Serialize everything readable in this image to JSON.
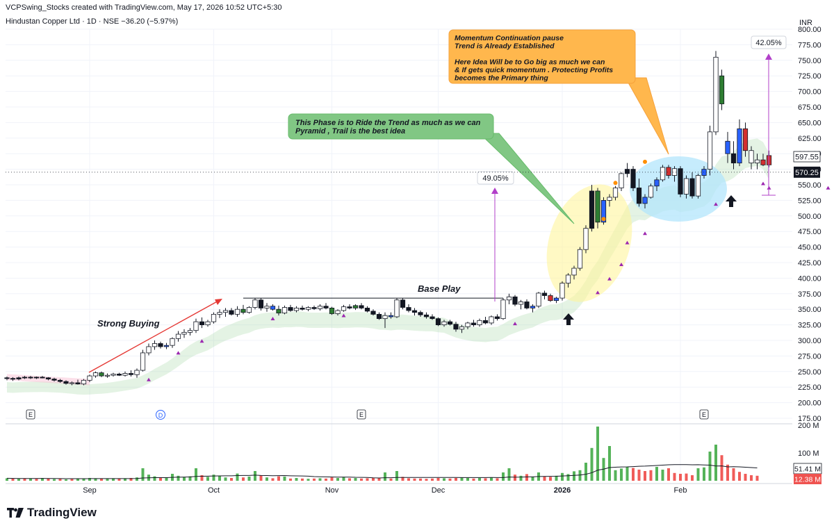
{
  "header": {
    "creator": "VCPSwing_Stocks created with TradingView.com, May 17, 2026 10:52 UTC+5:30",
    "symbol_line": "Hindustan Copper Ltd · 1D · NSE  −36.20 (−5.97%)"
  },
  "brand": {
    "name": "TradingView",
    "logo_icon": "tradingview-logo-icon"
  },
  "colors": {
    "up": "#2e7d32",
    "down": "#d32f2f",
    "hollow": "#ffffff",
    "blue": "#2962ff",
    "vol_up": "#4caf50",
    "vol_down": "#ef5350",
    "violet": "#9c27b0",
    "orange": "#ff8f00",
    "measure": "#b23fc9",
    "arrow_red": "#e53935"
  },
  "chart_data": {
    "type": "candlestick",
    "currency": "INR",
    "price_axis": {
      "min": 175,
      "max": 800,
      "ticks": [
        "800.00",
        "775.00",
        "750.00",
        "725.00",
        "700.00",
        "675.00",
        "650.00",
        "625.00",
        "600.00",
        "575.00",
        "550.00",
        "525.00",
        "500.00",
        "475.00",
        "450.00",
        "425.00",
        "400.00",
        "375.00",
        "350.00",
        "325.00",
        "300.00",
        "275.00",
        "250.00",
        "225.00",
        "200.00",
        "175.00"
      ]
    },
    "last_price_label": "570.25",
    "crosshair_label": "597.55",
    "volume_axis": {
      "max": 200,
      "ticks": [
        "200 M",
        "100 M"
      ]
    },
    "volume_labels": [
      "51.41 M",
      "12.38 M"
    ],
    "x_axis_labels": [
      {
        "label": "Sep",
        "bar": 14
      },
      {
        "label": "Oct",
        "bar": 35
      },
      {
        "label": "Nov",
        "bar": 55
      },
      {
        "label": "Dec",
        "bar": 73
      },
      {
        "label": "2026",
        "bar": 94
      },
      {
        "label": "Feb",
        "bar": 114
      }
    ],
    "event_markers": [
      {
        "label": "E",
        "bar": 4
      },
      {
        "label": "D",
        "bar": 26
      },
      {
        "label": "E",
        "bar": 60
      },
      {
        "label": "E",
        "bar": 118
      }
    ],
    "candles": [
      [
        240,
        242,
        236,
        239,
        "d"
      ],
      [
        239,
        241,
        235,
        238,
        "d"
      ],
      [
        238,
        242,
        236,
        240,
        "d"
      ],
      [
        240,
        243,
        238,
        241,
        "d"
      ],
      [
        241,
        243,
        238,
        240,
        "d"
      ],
      [
        240,
        242,
        238,
        241,
        "d"
      ],
      [
        241,
        243,
        239,
        240,
        "d"
      ],
      [
        240,
        241,
        236,
        238,
        "d"
      ],
      [
        238,
        240,
        234,
        236,
        "d"
      ],
      [
        236,
        238,
        232,
        234,
        "d"
      ],
      [
        234,
        236,
        229,
        231,
        "d"
      ],
      [
        231,
        234,
        228,
        232,
        "u"
      ],
      [
        232,
        237,
        229,
        230,
        "d"
      ],
      [
        230,
        238,
        228,
        236,
        "u"
      ],
      [
        236,
        245,
        233,
        243,
        "u"
      ],
      [
        243,
        250,
        240,
        248,
        "u"
      ],
      [
        248,
        250,
        241,
        243,
        "g"
      ],
      [
        243,
        247,
        240,
        244,
        "u"
      ],
      [
        244,
        248,
        242,
        246,
        "u"
      ],
      [
        246,
        248,
        243,
        244,
        "d"
      ],
      [
        244,
        250,
        242,
        247,
        "u"
      ],
      [
        247,
        252,
        242,
        245,
        "d"
      ],
      [
        245,
        255,
        240,
        252,
        "u"
      ],
      [
        252,
        285,
        250,
        280,
        "u"
      ],
      [
        280,
        295,
        276,
        290,
        "u"
      ],
      [
        290,
        300,
        285,
        295,
        "u"
      ],
      [
        295,
        298,
        287,
        290,
        "d"
      ],
      [
        290,
        296,
        286,
        292,
        "b"
      ],
      [
        292,
        305,
        288,
        303,
        "u"
      ],
      [
        303,
        315,
        298,
        310,
        "u"
      ],
      [
        310,
        318,
        304,
        313,
        "u"
      ],
      [
        313,
        320,
        308,
        316,
        "u"
      ],
      [
        316,
        335,
        312,
        330,
        "u"
      ],
      [
        330,
        337,
        320,
        325,
        "d"
      ],
      [
        325,
        333,
        322,
        330,
        "u"
      ],
      [
        330,
        345,
        327,
        342,
        "u"
      ],
      [
        342,
        350,
        336,
        345,
        "u"
      ],
      [
        345,
        352,
        338,
        348,
        "u"
      ],
      [
        348,
        352,
        340,
        342,
        "d"
      ],
      [
        342,
        355,
        338,
        350,
        "u"
      ],
      [
        350,
        357,
        342,
        345,
        "g"
      ],
      [
        345,
        355,
        343,
        353,
        "u"
      ],
      [
        353,
        368,
        350,
        365,
        "u"
      ],
      [
        365,
        368,
        348,
        352,
        "d"
      ],
      [
        352,
        360,
        346,
        355,
        "u"
      ],
      [
        355,
        358,
        348,
        350,
        "b"
      ],
      [
        350,
        356,
        340,
        344,
        "g"
      ],
      [
        344,
        356,
        342,
        353,
        "u"
      ],
      [
        353,
        357,
        346,
        348,
        "d"
      ],
      [
        348,
        355,
        345,
        352,
        "u"
      ],
      [
        352,
        356,
        348,
        350,
        "d"
      ],
      [
        350,
        355,
        347,
        353,
        "u"
      ],
      [
        353,
        356,
        349,
        351,
        "d"
      ],
      [
        351,
        358,
        348,
        355,
        "u"
      ],
      [
        355,
        360,
        350,
        352,
        "d"
      ],
      [
        352,
        354,
        341,
        343,
        "g"
      ],
      [
        343,
        350,
        340,
        348,
        "u"
      ],
      [
        348,
        357,
        346,
        354,
        "u"
      ],
      [
        354,
        358,
        350,
        352,
        "d"
      ],
      [
        352,
        358,
        349,
        356,
        "g"
      ],
      [
        356,
        360,
        350,
        352,
        "d"
      ],
      [
        352,
        355,
        345,
        347,
        "d"
      ],
      [
        347,
        350,
        340,
        342,
        "d"
      ],
      [
        342,
        345,
        333,
        335,
        "d"
      ],
      [
        335,
        345,
        320,
        340,
        "u"
      ],
      [
        340,
        345,
        335,
        338,
        "b"
      ],
      [
        338,
        368,
        336,
        365,
        "u"
      ],
      [
        365,
        368,
        350,
        353,
        "d"
      ],
      [
        353,
        358,
        345,
        348,
        "d"
      ],
      [
        348,
        352,
        340,
        345,
        "d"
      ],
      [
        345,
        348,
        338,
        341,
        "d"
      ],
      [
        341,
        345,
        335,
        338,
        "d"
      ],
      [
        338,
        342,
        333,
        335,
        "d"
      ],
      [
        335,
        337,
        323,
        325,
        "d"
      ],
      [
        325,
        333,
        322,
        330,
        "u"
      ],
      [
        330,
        333,
        324,
        326,
        "d"
      ],
      [
        326,
        330,
        314,
        318,
        "d"
      ],
      [
        318,
        325,
        312,
        322,
        "u"
      ],
      [
        322,
        330,
        318,
        328,
        "u"
      ],
      [
        328,
        333,
        322,
        325,
        "d"
      ],
      [
        325,
        335,
        322,
        332,
        "u"
      ],
      [
        332,
        338,
        326,
        328,
        "d"
      ],
      [
        328,
        340,
        325,
        338,
        "u"
      ],
      [
        338,
        342,
        332,
        335,
        "d"
      ],
      [
        335,
        368,
        333,
        365,
        "u"
      ],
      [
        365,
        375,
        358,
        370,
        "u"
      ],
      [
        370,
        373,
        355,
        358,
        "d"
      ],
      [
        358,
        365,
        350,
        362,
        "u"
      ],
      [
        362,
        366,
        350,
        352,
        "d"
      ],
      [
        352,
        358,
        345,
        355,
        "b"
      ],
      [
        355,
        378,
        352,
        376,
        "u"
      ],
      [
        376,
        380,
        366,
        372,
        "d"
      ],
      [
        372,
        375,
        362,
        364,
        "r"
      ],
      [
        364,
        370,
        360,
        368,
        "b"
      ],
      [
        368,
        395,
        364,
        392,
        "u"
      ],
      [
        392,
        408,
        385,
        405,
        "u"
      ],
      [
        405,
        420,
        398,
        416,
        "u"
      ],
      [
        416,
        450,
        412,
        446,
        "u"
      ],
      [
        446,
        485,
        440,
        480,
        "u"
      ],
      [
        480,
        550,
        475,
        540,
        "d"
      ],
      [
        540,
        545,
        480,
        490,
        "g"
      ],
      [
        490,
        530,
        486,
        525,
        "b"
      ],
      [
        525,
        535,
        515,
        530,
        "u"
      ],
      [
        530,
        548,
        525,
        545,
        "u"
      ],
      [
        545,
        570,
        540,
        568,
        "u"
      ],
      [
        568,
        585,
        562,
        575,
        "d"
      ],
      [
        575,
        580,
        540,
        545,
        "d"
      ],
      [
        545,
        560,
        515,
        520,
        "d"
      ],
      [
        520,
        535,
        512,
        530,
        "b"
      ],
      [
        530,
        552,
        528,
        548,
        "u"
      ],
      [
        548,
        562,
        540,
        558,
        "b"
      ],
      [
        558,
        582,
        555,
        578,
        "u"
      ],
      [
        578,
        582,
        560,
        565,
        "r"
      ],
      [
        565,
        580,
        555,
        576,
        "u"
      ],
      [
        576,
        580,
        530,
        535,
        "d"
      ],
      [
        535,
        565,
        528,
        560,
        "u"
      ],
      [
        560,
        570,
        528,
        532,
        "d"
      ],
      [
        532,
        568,
        528,
        565,
        "u"
      ],
      [
        565,
        580,
        560,
        575,
        "b"
      ],
      [
        575,
        645,
        565,
        635,
        "u"
      ],
      [
        635,
        765,
        630,
        755,
        "u"
      ],
      [
        725,
        735,
        670,
        680,
        "g"
      ],
      [
        620,
        635,
        585,
        600,
        "b"
      ],
      [
        600,
        620,
        575,
        585,
        "d"
      ],
      [
        585,
        655,
        580,
        640,
        "b"
      ],
      [
        640,
        650,
        595,
        605,
        "r"
      ],
      [
        605,
        612,
        575,
        585,
        "u"
      ],
      [
        585,
        600,
        575,
        590,
        "u"
      ],
      [
        590,
        600,
        580,
        582,
        "r"
      ],
      [
        582,
        605,
        578,
        597,
        "r"
      ]
    ],
    "volumes": [
      [
        9,
        "u"
      ],
      [
        8,
        "d"
      ],
      [
        7,
        "u"
      ],
      [
        9,
        "d"
      ],
      [
        8,
        "u"
      ],
      [
        7,
        "d"
      ],
      [
        10,
        "u"
      ],
      [
        8,
        "d"
      ],
      [
        6,
        "u"
      ],
      [
        7,
        "d"
      ],
      [
        5,
        "u"
      ],
      [
        6,
        "d"
      ],
      [
        8,
        "u"
      ],
      [
        7,
        "u"
      ],
      [
        10,
        "u"
      ],
      [
        9,
        "u"
      ],
      [
        8,
        "d"
      ],
      [
        7,
        "u"
      ],
      [
        9,
        "u"
      ],
      [
        8,
        "d"
      ],
      [
        9,
        "u"
      ],
      [
        10,
        "d"
      ],
      [
        12,
        "u"
      ],
      [
        45,
        "u"
      ],
      [
        22,
        "u"
      ],
      [
        16,
        "u"
      ],
      [
        10,
        "d"
      ],
      [
        12,
        "u"
      ],
      [
        25,
        "u"
      ],
      [
        18,
        "u"
      ],
      [
        14,
        "u"
      ],
      [
        16,
        "u"
      ],
      [
        45,
        "u"
      ],
      [
        20,
        "d"
      ],
      [
        14,
        "u"
      ],
      [
        22,
        "u"
      ],
      [
        18,
        "u"
      ],
      [
        12,
        "u"
      ],
      [
        10,
        "d"
      ],
      [
        26,
        "u"
      ],
      [
        12,
        "d"
      ],
      [
        15,
        "u"
      ],
      [
        35,
        "u"
      ],
      [
        20,
        "d"
      ],
      [
        12,
        "u"
      ],
      [
        9,
        "d"
      ],
      [
        16,
        "d"
      ],
      [
        15,
        "u"
      ],
      [
        8,
        "d"
      ],
      [
        10,
        "u"
      ],
      [
        8,
        "d"
      ],
      [
        7,
        "u"
      ],
      [
        8,
        "d"
      ],
      [
        9,
        "u"
      ],
      [
        8,
        "d"
      ],
      [
        12,
        "d"
      ],
      [
        10,
        "u"
      ],
      [
        14,
        "u"
      ],
      [
        9,
        "d"
      ],
      [
        10,
        "u"
      ],
      [
        8,
        "d"
      ],
      [
        9,
        "d"
      ],
      [
        10,
        "d"
      ],
      [
        11,
        "d"
      ],
      [
        30,
        "u"
      ],
      [
        8,
        "d"
      ],
      [
        35,
        "u"
      ],
      [
        14,
        "d"
      ],
      [
        9,
        "d"
      ],
      [
        8,
        "d"
      ],
      [
        8,
        "d"
      ],
      [
        7,
        "d"
      ],
      [
        8,
        "d"
      ],
      [
        10,
        "d"
      ],
      [
        9,
        "u"
      ],
      [
        8,
        "d"
      ],
      [
        10,
        "d"
      ],
      [
        11,
        "u"
      ],
      [
        10,
        "u"
      ],
      [
        8,
        "d"
      ],
      [
        10,
        "u"
      ],
      [
        9,
        "d"
      ],
      [
        12,
        "u"
      ],
      [
        9,
        "d"
      ],
      [
        30,
        "u"
      ],
      [
        45,
        "u"
      ],
      [
        22,
        "d"
      ],
      [
        18,
        "u"
      ],
      [
        24,
        "d"
      ],
      [
        14,
        "u"
      ],
      [
        30,
        "u"
      ],
      [
        16,
        "d"
      ],
      [
        14,
        "d"
      ],
      [
        18,
        "u"
      ],
      [
        28,
        "u"
      ],
      [
        24,
        "u"
      ],
      [
        34,
        "u"
      ],
      [
        38,
        "u"
      ],
      [
        65,
        "u"
      ],
      [
        118,
        "u"
      ],
      [
        195,
        "u"
      ],
      [
        82,
        "u"
      ],
      [
        125,
        "u"
      ],
      [
        38,
        "u"
      ],
      [
        44,
        "u"
      ],
      [
        50,
        "u"
      ],
      [
        46,
        "d"
      ],
      [
        40,
        "d"
      ],
      [
        35,
        "d"
      ],
      [
        38,
        "d"
      ],
      [
        50,
        "u"
      ],
      [
        40,
        "u"
      ],
      [
        45,
        "d"
      ],
      [
        28,
        "d"
      ],
      [
        25,
        "d"
      ],
      [
        26,
        "d"
      ],
      [
        20,
        "d"
      ],
      [
        45,
        "u"
      ],
      [
        48,
        "u"
      ],
      [
        105,
        "u"
      ],
      [
        130,
        "u"
      ],
      [
        92,
        "d"
      ],
      [
        58,
        "d"
      ],
      [
        45,
        "d"
      ],
      [
        32,
        "d"
      ],
      [
        25,
        "d"
      ],
      [
        20,
        "d"
      ],
      [
        18,
        "d"
      ]
    ],
    "annotations": {
      "momentum_box": "Momentum Continuation pause\nTrend is Already Established\n\nHere Idea Will be to Go big as much we can\n& If gets quick momentum . Protecting Profits\nbecomes the Primary thing",
      "ride_box": "This Phase is to Ride the Trend as much as we can\nPyramid , Trail is the best idea",
      "base_play": "Base Play",
      "strong_buying": "Strong Buying",
      "measure_1": "49.05%",
      "measure_2": "42.05%"
    }
  }
}
